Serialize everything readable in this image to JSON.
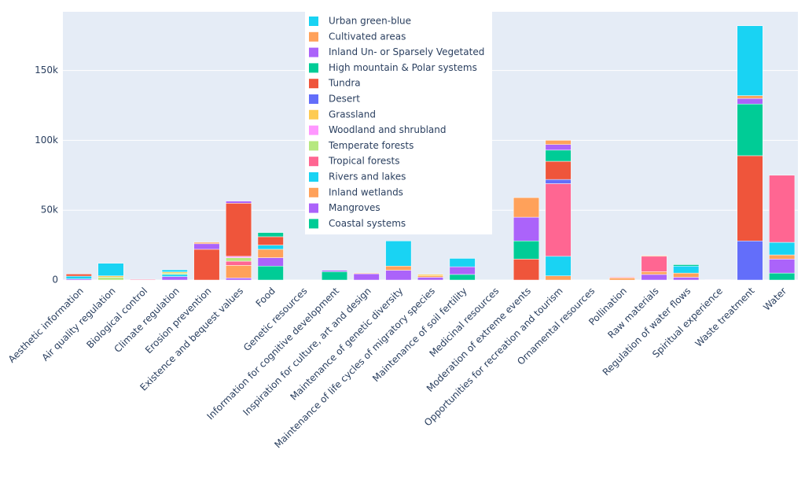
{
  "chart_data": {
    "type": "stacked_bar",
    "categories": [
      "Aesthetic information",
      "Air quality regulation",
      "Biological control",
      "Climate regulation",
      "Erosion prevention",
      "Existence and bequest values",
      "Food",
      "Genetic resources",
      "Information for cognitive development",
      "Inspiration for culture, art and design",
      "Maintenance of genetic diversity",
      "Maintenance of life cycles of migratory species",
      "Maintenance of soil fertility",
      "Medicinal resources",
      "Moderation of extreme events",
      "Opportunities for recreation and tourism",
      "Ornamental resources",
      "Pollination",
      "Raw materials",
      "Regulation of water flows",
      "Spiritual experience",
      "Waste treatment",
      "Water"
    ],
    "series": [
      {
        "name": "Urban green-blue",
        "color": "#19d3f3",
        "values": [
          0,
          9000,
          0,
          1500,
          0,
          0,
          0,
          0,
          0,
          0,
          0,
          0,
          0,
          0,
          0,
          0,
          0,
          0,
          0,
          0,
          0,
          50000,
          0
        ]
      },
      {
        "name": "Cultivated areas",
        "color": "#ffa15a",
        "values": [
          0,
          0,
          0,
          0,
          1000,
          0,
          0,
          0,
          0,
          500,
          0,
          0,
          0,
          0,
          14000,
          3000,
          0,
          0,
          500,
          0,
          0,
          2000,
          0
        ]
      },
      {
        "name": "Inland Un- or Sparsely Vegetated",
        "color": "#ab63fa",
        "values": [
          0,
          0,
          0,
          0,
          4000,
          1500,
          0,
          0,
          0,
          0,
          0,
          0,
          0,
          0,
          17000,
          4000,
          0,
          0,
          0,
          0,
          0,
          4000,
          0
        ]
      },
      {
        "name": "High mountain & Polar systems",
        "color": "#00cc96",
        "values": [
          0,
          0,
          0,
          0,
          0,
          0,
          3000,
          0,
          0,
          0,
          0,
          0,
          0,
          0,
          13000,
          8000,
          0,
          0,
          0,
          1000,
          0,
          37000,
          0
        ]
      },
      {
        "name": "Tundra",
        "color": "#ef553b",
        "values": [
          1500,
          0,
          0,
          0,
          22000,
          38000,
          6000,
          0,
          0,
          0,
          0,
          0,
          0,
          0,
          15000,
          13000,
          0,
          0,
          0,
          0,
          0,
          61000,
          0
        ]
      },
      {
        "name": "Desert",
        "color": "#636efa",
        "values": [
          0,
          0,
          0,
          0,
          0,
          0,
          0,
          0,
          0,
          0,
          0,
          0,
          0,
          0,
          0,
          3000,
          0,
          0,
          0,
          0,
          0,
          28000,
          0
        ]
      },
      {
        "name": "Grassland",
        "color": "#fecb52",
        "values": [
          0,
          1000,
          0,
          800,
          0,
          0,
          0,
          0,
          0,
          0,
          0,
          1000,
          0,
          0,
          0,
          0,
          0,
          0,
          0,
          0,
          0,
          0,
          0
        ]
      },
      {
        "name": "Woodland and shrubland",
        "color": "#ff97ff",
        "values": [
          0,
          0,
          0,
          0,
          0,
          1000,
          0,
          0,
          0,
          0,
          0,
          0,
          0,
          0,
          0,
          0,
          0,
          0,
          0,
          0,
          300,
          0,
          0
        ]
      },
      {
        "name": "Temperate forests",
        "color": "#b6e880",
        "values": [
          0,
          2000,
          0,
          1000,
          0,
          2500,
          0,
          0,
          0,
          0,
          0,
          0,
          0,
          0,
          0,
          0,
          0,
          0,
          0,
          0,
          0,
          0,
          0
        ]
      },
      {
        "name": "Tropical forests",
        "color": "#ff6692",
        "values": [
          0,
          0,
          500,
          0,
          0,
          3000,
          0,
          0,
          0,
          0,
          0,
          0,
          0,
          0,
          0,
          52000,
          0,
          500,
          11000,
          0,
          0,
          0,
          48000
        ]
      },
      {
        "name": "Rivers and lakes",
        "color": "#19d3f3",
        "values": [
          2000,
          0,
          0,
          1500,
          0,
          0,
          3000,
          0,
          0,
          0,
          18000,
          0,
          6000,
          0,
          0,
          14000,
          0,
          0,
          0,
          5000,
          0,
          0,
          9000
        ]
      },
      {
        "name": "Inland wetlands",
        "color": "#ffa15a",
        "values": [
          0,
          0,
          0,
          0,
          0,
          9000,
          6000,
          0,
          0,
          0,
          3000,
          1000,
          0,
          0,
          0,
          3000,
          0,
          1500,
          2000,
          3000,
          0,
          0,
          3000
        ]
      },
      {
        "name": "Mangroves",
        "color": "#ab63fa",
        "values": [
          800,
          0,
          0,
          2500,
          0,
          1500,
          6000,
          0,
          1000,
          4500,
          7000,
          2000,
          5500,
          0,
          0,
          0,
          0,
          0,
          4000,
          2000,
          0,
          0,
          10000
        ]
      },
      {
        "name": "Coastal systems",
        "color": "#00cc96",
        "values": [
          0,
          0,
          0,
          0,
          0,
          0,
          10000,
          0,
          6000,
          0,
          0,
          0,
          4000,
          0,
          0,
          0,
          0,
          0,
          0,
          0,
          0,
          0,
          5000
        ]
      }
    ],
    "ylim": [
      0,
      192000
    ],
    "yticks": [
      0,
      {
        "value": 50000,
        "label": "50k"
      },
      {
        "value": 100000,
        "label": "100k"
      },
      {
        "value": 150000,
        "label": "150k"
      }
    ],
    "grid": true
  }
}
